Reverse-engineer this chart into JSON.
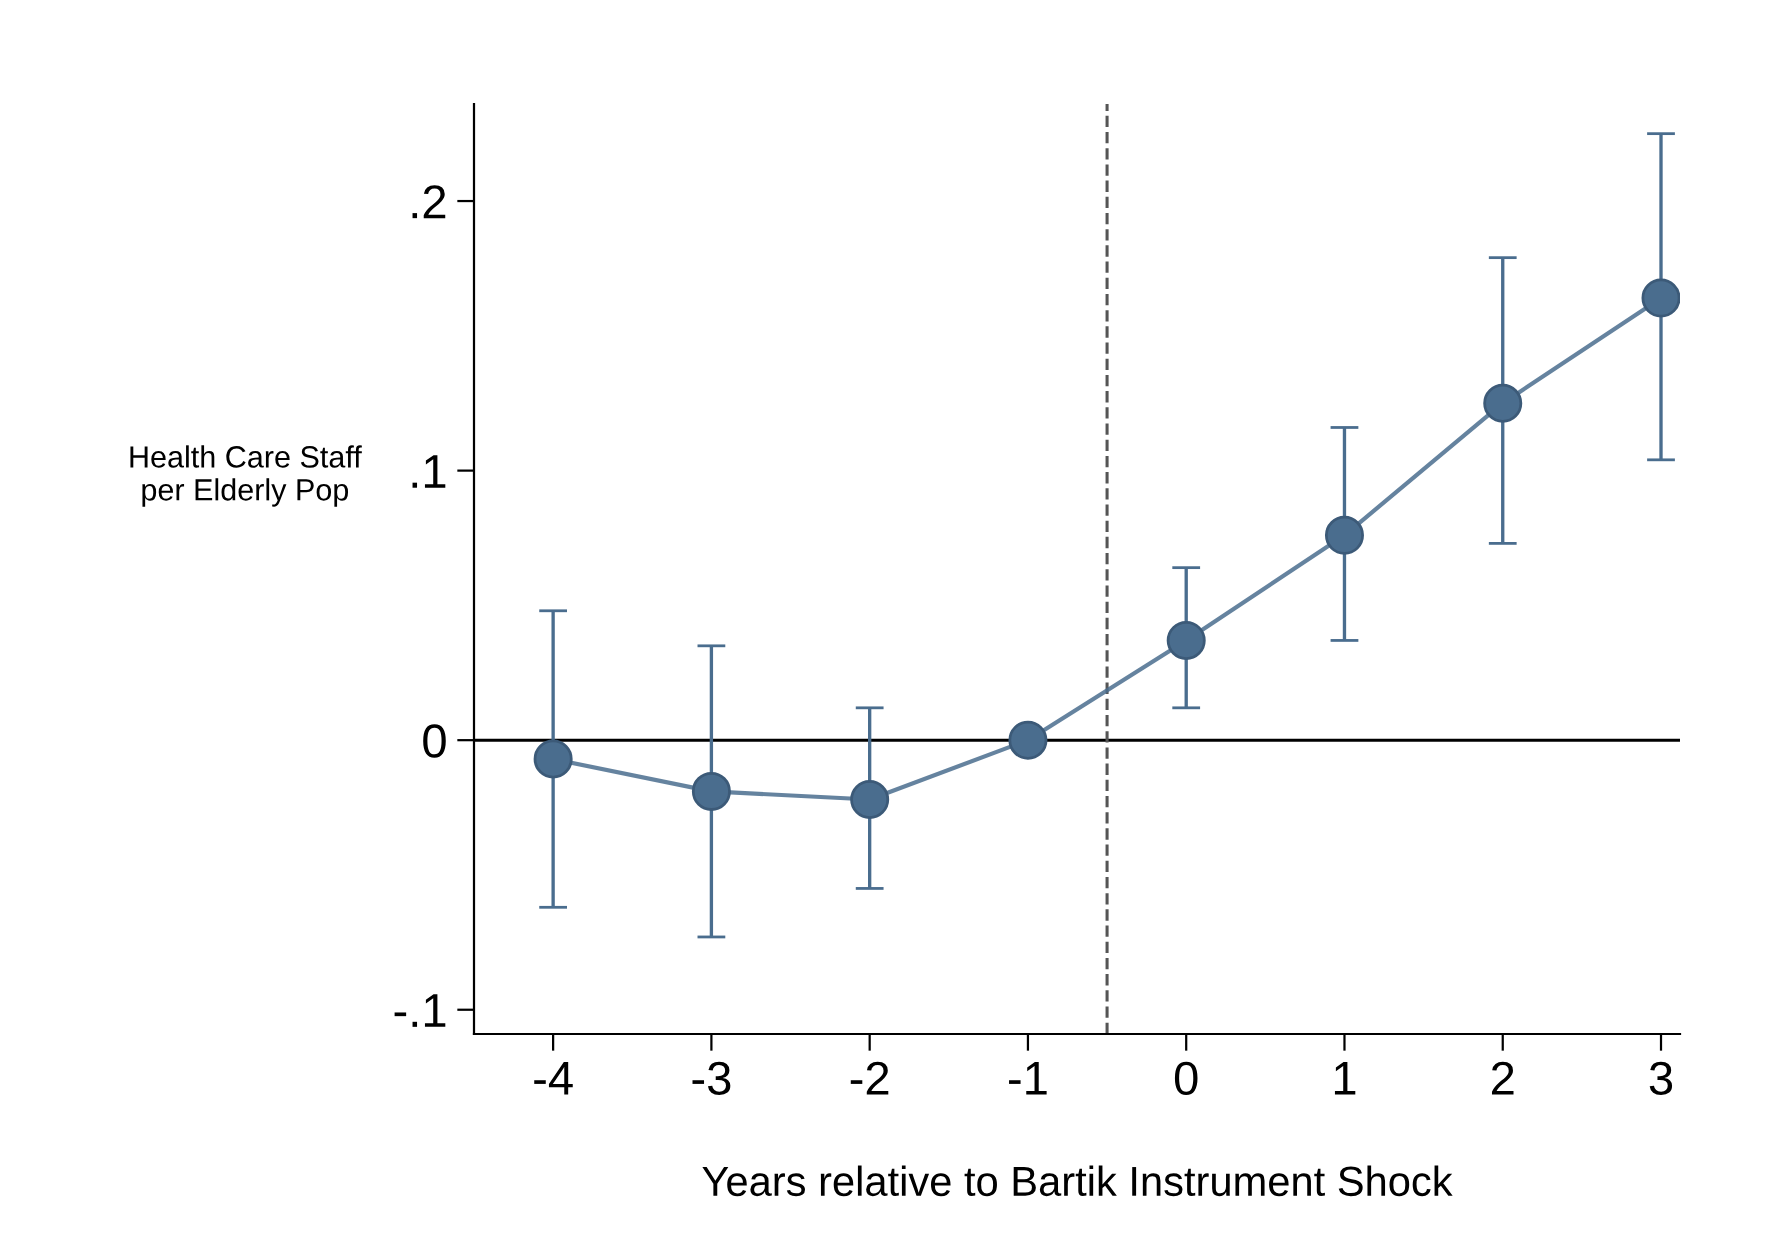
{
  "chart_data": {
    "type": "line",
    "xlabel": "Years relative to Bartik Instrument Shock",
    "ylabel": "Health Care Staff\nper Elderly Pop",
    "x": [
      -4,
      -3,
      -2,
      -1,
      0,
      1,
      2,
      3
    ],
    "series": [
      {
        "color": "#4a6d8e",
        "values": [
          -0.007,
          -0.019,
          -0.022,
          0,
          0.037,
          0.076,
          0.125,
          0.164
        ],
        "errors": [
          [
            -0.062,
            0.048
          ],
          [
            -0.073,
            0.035
          ],
          [
            -0.055,
            0.012
          ],
          null,
          [
            0.012,
            0.064
          ],
          [
            0.037,
            0.116
          ],
          [
            0.073,
            0.179
          ],
          [
            0.104,
            0.225
          ]
        ]
      }
    ],
    "xlim": [
      -4.5,
      3.12
    ],
    "xticks": [
      -4,
      -3,
      -2,
      -1,
      0,
      1,
      2,
      3
    ],
    "ylim": [
      -0.109,
      0.236
    ],
    "yticks": [
      {
        "value": -0.1,
        "label": "-.1"
      },
      0,
      {
        "value": 0.1,
        "label": ".1"
      },
      {
        "value": 0.2,
        "label": ".2"
      }
    ],
    "ref_lines": [
      {
        "axis": "y",
        "value": 0,
        "color": "#000000",
        "line_style": "solid"
      },
      {
        "axis": "x",
        "value": -0.5,
        "color": "#555555",
        "line_style": "dashed"
      }
    ],
    "marker": "circle",
    "line_style": "solid",
    "grid": false,
    "legend": false
  }
}
